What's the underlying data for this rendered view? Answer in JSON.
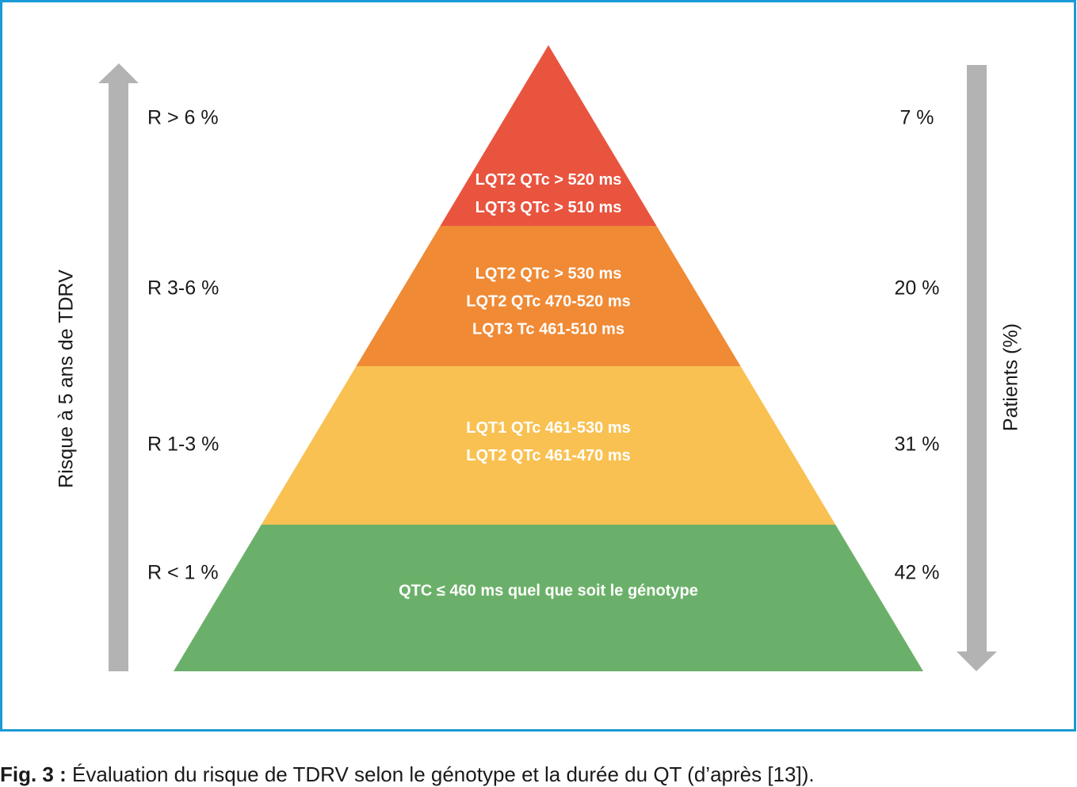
{
  "left_axis_label": "Risque à 5 ans de TDRV",
  "right_axis_label": "Patients (%)",
  "levels": [
    {
      "risk": "R > 6 %",
      "patients": "7 %",
      "lines": [
        "LQT2 QTc > 520 ms",
        "LQT3 QTc > 510 ms"
      ]
    },
    {
      "risk": "R 3-6 %",
      "patients": "20 %",
      "lines": [
        "LQT2 QTc > 530 ms",
        "LQT2 QTc 470-520 ms",
        "LQT3 Tc 461-510 ms"
      ]
    },
    {
      "risk": "R 1-3 %",
      "patients": "31 %",
      "lines": [
        "LQT1 QTc 461-530 ms",
        "LQT2 QTc 461-470 ms"
      ]
    },
    {
      "risk": "R < 1 %",
      "patients": "42 %",
      "lines": [
        "QTC ≤ 460 ms quel que soit le génotype"
      ]
    }
  ],
  "caption": {
    "label": "Fig. 3 :",
    "text": "Évaluation du risque de TDRV selon le génotype et la durée du QT (d’après [13])."
  }
}
